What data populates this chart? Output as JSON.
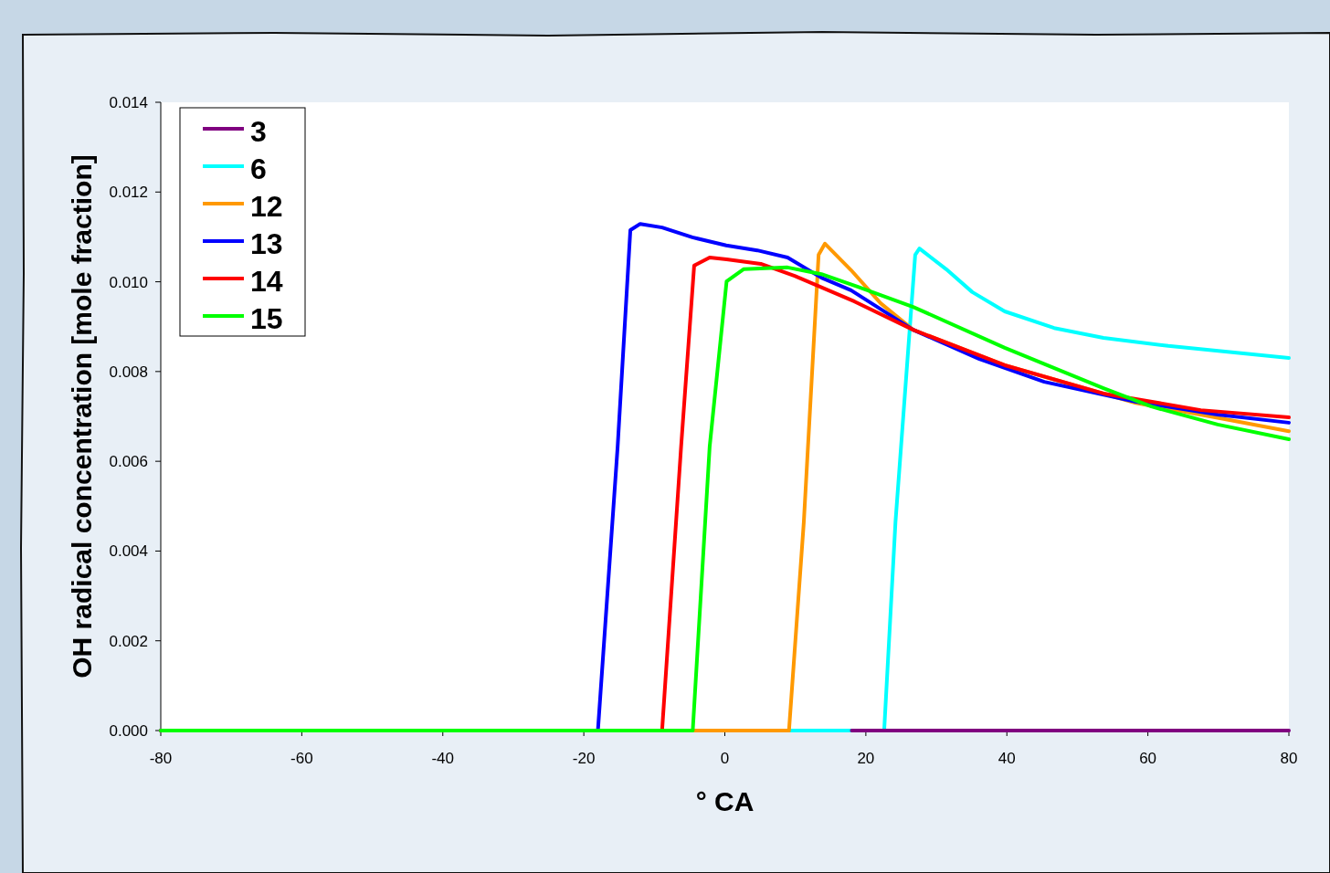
{
  "chart_data": {
    "type": "line",
    "xlabel": "° CA",
    "ylabel": "OH radical concentration [mole fraction]",
    "xlim": [
      -80,
      80
    ],
    "xticks": [
      -80,
      -60,
      -40,
      -20,
      0,
      20,
      40,
      60,
      80
    ],
    "ylim": [
      0,
      0.014
    ],
    "yticks": [
      {
        "value": 0,
        "label": "0.000"
      },
      {
        "value": 0.002,
        "label": "0.002"
      },
      {
        "value": 0.004,
        "label": "0.004"
      },
      {
        "value": 0.006,
        "label": "0.006"
      },
      {
        "value": 0.008,
        "label": "0.008"
      },
      {
        "value": 0.01,
        "label": "0.010"
      },
      {
        "value": 0.012,
        "label": "0.012"
      },
      {
        "value": 0.014,
        "label": "0.014"
      }
    ],
    "grid": false,
    "legend": "top left",
    "marker": "none",
    "line_style": "solid",
    "series": [
      {
        "name": "3",
        "color": "#800080",
        "x": [
          18,
          80
        ],
        "values": [
          0,
          0
        ]
      },
      {
        "name": "6",
        "color": "#00ffff",
        "x": [
          5,
          22.6,
          24.2,
          27.0,
          27.6,
          31.4,
          35.1,
          39.7,
          46.7,
          53.7,
          62.9,
          80
        ],
        "values": [
          0,
          0,
          0.00464,
          0.0106,
          0.01074,
          0.01028,
          0.00977,
          0.00934,
          0.00897,
          0.00875,
          0.00857,
          0.0083
        ]
      },
      {
        "name": "12",
        "color": "#ff9900",
        "x": [
          -9,
          9.1,
          11.2,
          13.3,
          14.2,
          17.9,
          22.1,
          26.7,
          39.7,
          58.3,
          69.9,
          80
        ],
        "values": [
          0,
          0,
          0.00464,
          0.0106,
          0.01085,
          0.01026,
          0.00952,
          0.00893,
          0.00814,
          0.0073,
          0.00697,
          0.00667
        ]
      },
      {
        "name": "13",
        "color": "#0000ff",
        "x": [
          -80,
          -18,
          -15.2,
          -13.4,
          -12,
          -8.9,
          -4.6,
          0.2,
          4.6,
          8.9,
          13.7,
          17.9,
          26.7,
          36.1,
          45.3,
          58.2,
          69.9,
          80
        ],
        "values": [
          0,
          0,
          0.00633,
          0.01115,
          0.01129,
          0.01121,
          0.01099,
          0.01081,
          0.0107,
          0.01054,
          0.01009,
          0.00981,
          0.00893,
          0.00828,
          0.00777,
          0.00733,
          0.00704,
          0.00686
        ]
      },
      {
        "name": "14",
        "color": "#ff0000",
        "x": [
          -80,
          -8.9,
          -6.2,
          -4.35,
          -2.15,
          0.25,
          5.1,
          9.9,
          18.4,
          26.7,
          39.7,
          53.7,
          67.5,
          80
        ],
        "values": [
          0,
          0,
          0.00633,
          0.01036,
          0.01054,
          0.0105,
          0.0104,
          0.01013,
          0.00956,
          0.00893,
          0.00814,
          0.00751,
          0.00714,
          0.00698
        ]
      },
      {
        "name": "15",
        "color": "#00ff00",
        "x": [
          -80,
          -4.55,
          -2.15,
          0.25,
          2.65,
          8.9,
          13.7,
          18.8,
          26.7,
          39.7,
          53.7,
          60.5,
          69.9,
          80
        ],
        "values": [
          0,
          0,
          0.00633,
          0.01001,
          0.01028,
          0.01032,
          0.01017,
          0.00989,
          0.00944,
          0.00853,
          0.00763,
          0.00722,
          0.00682,
          0.00649
        ]
      }
    ]
  }
}
